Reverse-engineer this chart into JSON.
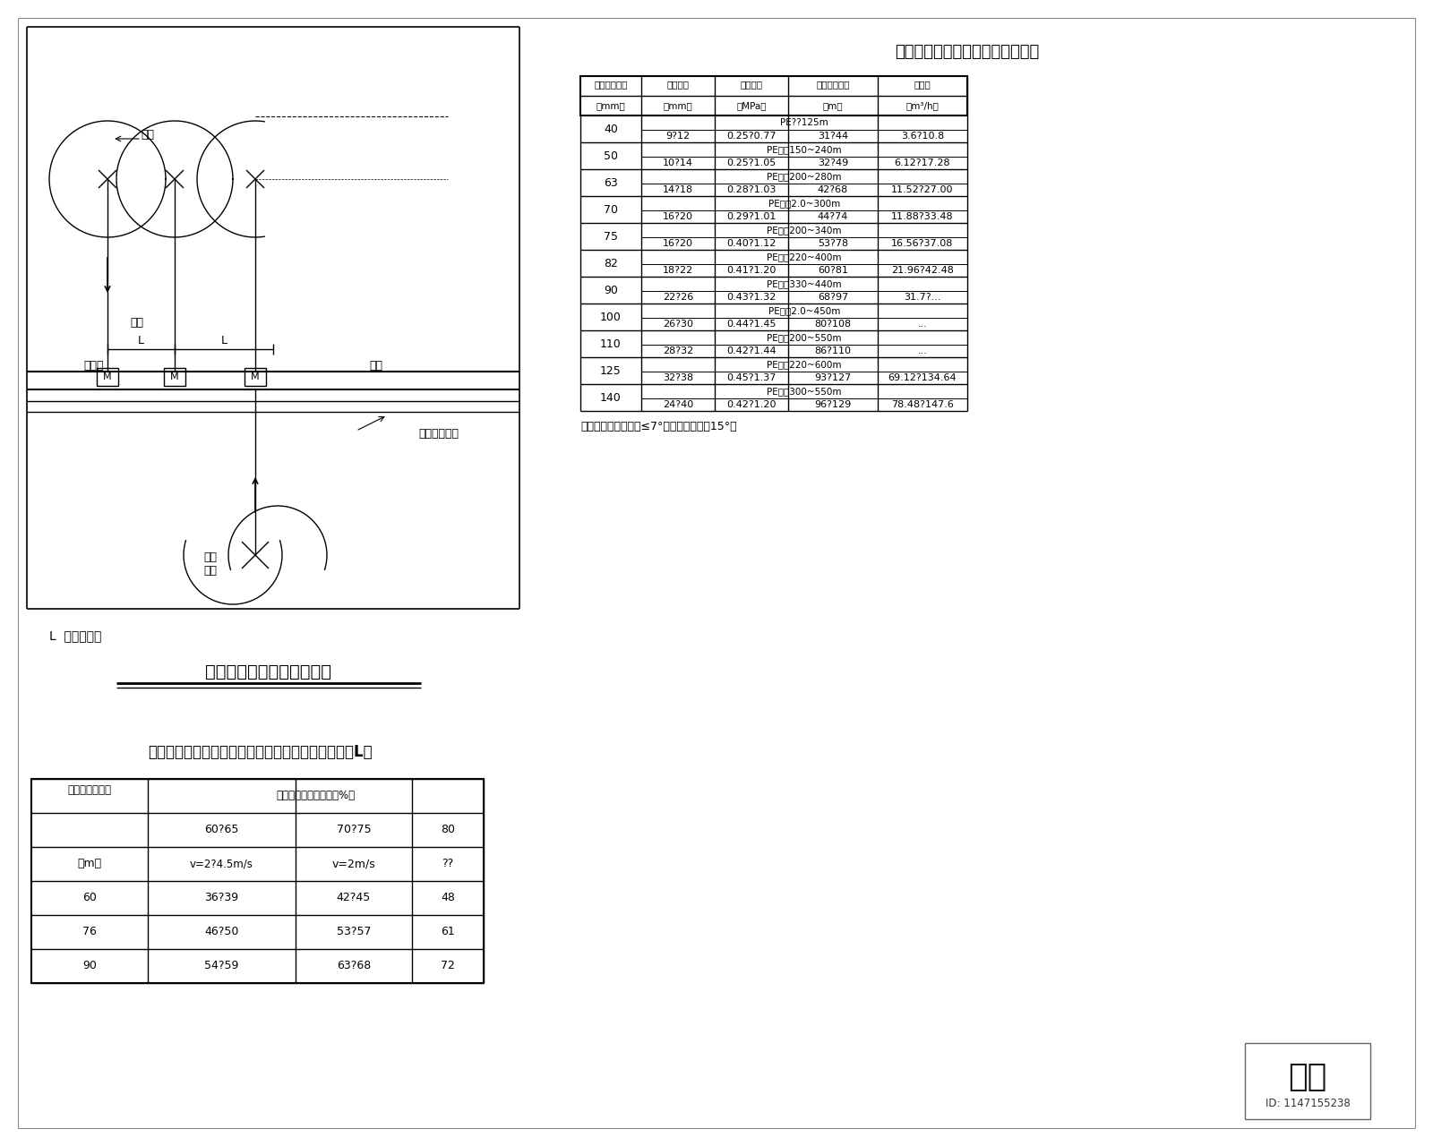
{
  "bg_color": "#ffffff",
  "title1": "绞盘式喷灌机（单喷头车）参数表",
  "title2": "绞盘式喷灌机组山间布置图",
  "title3": "不同喷洒湿润圆直径与风速条件下建议行喷线间距（L）",
  "note1": "L 行喷线间距",
  "note2": "适用条件：地形坡度≤7°，最大不能超过15°。",
  "id_text": "ID: 1147155238",
  "logo_text": "知末",
  "pipe_sizes": [
    "40",
    "50",
    "63",
    "70",
    "75",
    "82",
    "90",
    "100",
    "110",
    "125",
    "140"
  ],
  "pe_specs": [
    "PE??125m",
    "PE管长150~240m",
    "PE管长200~280m",
    "PE管长2.0~300m",
    "PE管长200~340m",
    "PE管长220~400m",
    "PE管长330~440m",
    "PE管长2.0~450m",
    "PE管长200~550m",
    "PE管长220~600m",
    "PE管长300~550m"
  ],
  "data_rows_t1": [
    [
      "9?12",
      "0.25?0.77",
      "31?44",
      "3.6?10.8"
    ],
    [
      "10?14",
      "0.25?1.05",
      "32?49",
      "6.12?17.28"
    ],
    [
      "14?18",
      "0.28?1.03",
      "42?68",
      "11.52?27.00"
    ],
    [
      "16?20",
      "0.29?1.01",
      "44?74",
      "11.88?33.48"
    ],
    [
      "16?20",
      "0.40?1.12",
      "53?78",
      "16.56?37.08"
    ],
    [
      "18?22",
      "0.41?1.20",
      "60?81",
      "21.96?42.48"
    ],
    [
      "22?26",
      "0.43?1.32",
      "68?97",
      "31.7?..."
    ],
    [
      "26?30",
      "0.44?1.45",
      "80?108",
      "..."
    ],
    [
      "28?32",
      "0.42?1.44",
      "86?110",
      "..."
    ],
    [
      "32?38",
      "0.45?1.37",
      "93?127",
      "69.12?134.64"
    ],
    [
      "24?40",
      "0.42?1.20",
      "96?129",
      "78.48?147.6"
    ]
  ],
  "table2_data": [
    [
      "60",
      "36?39",
      "42?45",
      "48"
    ],
    [
      "76",
      "46?50",
      "53?57",
      "61"
    ],
    [
      "90",
      "54?59",
      "63?68",
      "72"
    ]
  ]
}
